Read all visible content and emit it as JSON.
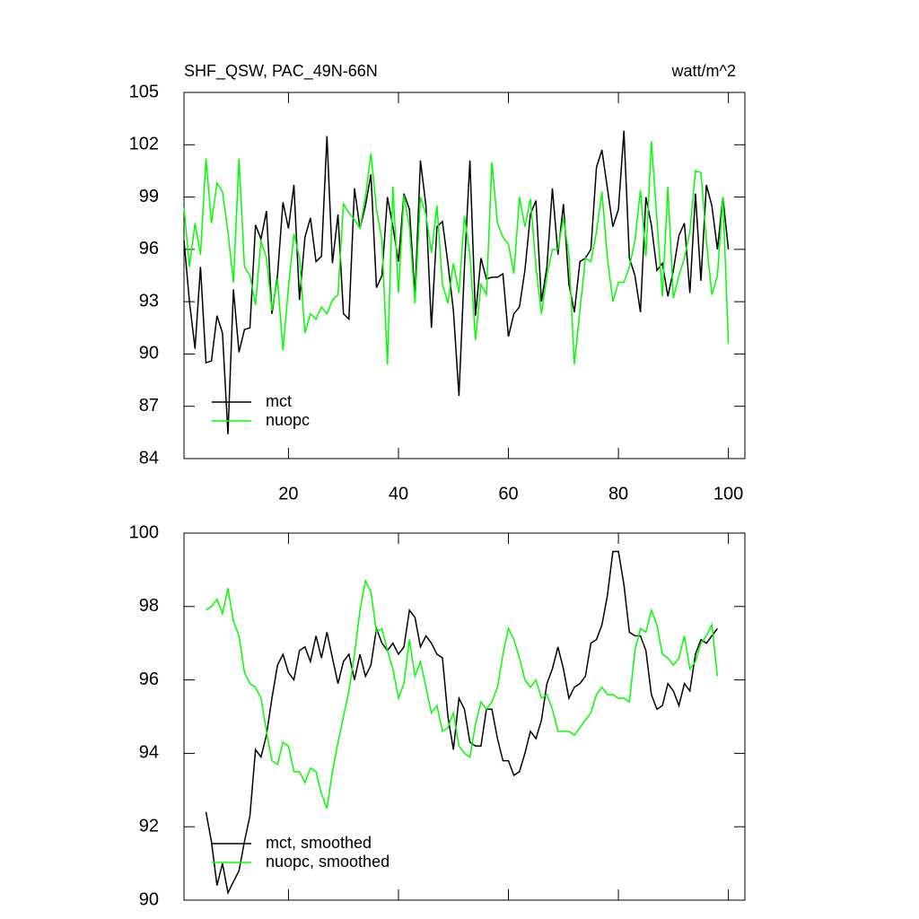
{
  "chart_data": [
    {
      "type": "line",
      "title": "SHF_QSW, PAC_49N-66N",
      "units": "watt/m^2",
      "x": [
        1,
        2,
        3,
        4,
        5,
        6,
        7,
        8,
        9,
        10,
        11,
        12,
        13,
        14,
        15,
        16,
        17,
        18,
        19,
        20,
        21,
        22,
        23,
        24,
        25,
        26,
        27,
        28,
        29,
        30,
        31,
        32,
        33,
        34,
        35,
        36,
        37,
        38,
        39,
        40,
        41,
        42,
        43,
        44,
        45,
        46,
        47,
        48,
        49,
        50,
        51,
        52,
        53,
        54,
        55,
        56,
        57,
        58,
        59,
        60,
        61,
        62,
        63,
        64,
        65,
        66,
        67,
        68,
        69,
        70,
        71,
        72,
        73,
        74,
        75,
        76,
        77,
        78,
        79,
        80,
        81,
        82,
        83,
        84,
        85,
        86,
        87,
        88,
        89,
        90,
        91,
        92,
        93,
        94,
        95,
        96,
        97,
        98,
        99,
        100
      ],
      "series": [
        {
          "name": "mct",
          "color": "#000000",
          "values": [
            96.5,
            93,
            90.3,
            95,
            89.5,
            89.6,
            92.2,
            91.2,
            85.4,
            93.7,
            90.1,
            91.4,
            91.5,
            97.4,
            96.6,
            98.2,
            92.3,
            94.5,
            98.7,
            97.2,
            99.7,
            93.1,
            96.7,
            97.8,
            95.3,
            95.6,
            102.5,
            95.2,
            98,
            92.3,
            92,
            99.5,
            97.2,
            98.5,
            100.3,
            93.8,
            94.5,
            99,
            97.3,
            95.3,
            99.2,
            98.3,
            93.3,
            101.1,
            98.5,
            91.5,
            97.3,
            97.6,
            95.2,
            92.5,
            87.6,
            95,
            101.1,
            92.2,
            95.5,
            94.3,
            94.4,
            94.4,
            94.6,
            91,
            92.3,
            92.7,
            94.8,
            98,
            98.8,
            93,
            95,
            99.5,
            95.7,
            98.6,
            94,
            92.4,
            95.3,
            95.5,
            96,
            100.7,
            101.7,
            99.5,
            97.3,
            98.3,
            102.8,
            95.5,
            94.5,
            92.4,
            99,
            97.4,
            94.8,
            95.2,
            93.3,
            94.8,
            96.8,
            97.5,
            93.5,
            99.2,
            94.2,
            99.7,
            98.5,
            96,
            99,
            96
          ]
        },
        {
          "name": "nuopc",
          "color": "#00ff00",
          "values": [
            98.4,
            95,
            97.5,
            95.7,
            101.2,
            97.5,
            99.8,
            99.3,
            97,
            94.1,
            101.2,
            95,
            94.5,
            92.8,
            96.5,
            95.5,
            92.5,
            94.3,
            90.2,
            93.8,
            96.9,
            95.5,
            91.2,
            92.3,
            92,
            92.7,
            92.3,
            93.1,
            93.4,
            98.6,
            98.1,
            97.7,
            97.2,
            99,
            101.5,
            98.3,
            96.5,
            89.4,
            99.6,
            93.5,
            99.1,
            97.3,
            92.9,
            99,
            98,
            95.8,
            98.5,
            94,
            92.9,
            95.2,
            93.5,
            97.9,
            95.7,
            90.8,
            94,
            93.4,
            101,
            97.5,
            96.7,
            96.3,
            94.6,
            99,
            97.3,
            98.9,
            95,
            92.3,
            94.5,
            96,
            96,
            97.8,
            95.7,
            89.4,
            92.5,
            95.5,
            95.3,
            97,
            99.3,
            95.5,
            93,
            94.1,
            94.1,
            95,
            96.5,
            99.4,
            95.6,
            102.2,
            97.7,
            93.3,
            99.6,
            93.2,
            94.5,
            95.5,
            97,
            100.5,
            100.4,
            96.5,
            93.4,
            94.5,
            99,
            90.6
          ]
        }
      ],
      "xlim": [
        1,
        103
      ],
      "xticks": [
        20,
        40,
        60,
        80,
        100
      ],
      "x_tick_labels": true,
      "ylim": [
        84,
        105
      ],
      "yticks": [
        84,
        87,
        90,
        93,
        96,
        99,
        102,
        105
      ],
      "legend": "lower left"
    },
    {
      "type": "line",
      "x": [
        5,
        6,
        7,
        8,
        9,
        10,
        11,
        12,
        13,
        14,
        15,
        16,
        17,
        18,
        19,
        20,
        21,
        22,
        23,
        24,
        25,
        26,
        27,
        28,
        29,
        30,
        31,
        32,
        33,
        34,
        35,
        36,
        37,
        38,
        39,
        40,
        41,
        42,
        43,
        44,
        45,
        46,
        47,
        48,
        49,
        50,
        51,
        52,
        53,
        54,
        55,
        56,
        57,
        58,
        59,
        60,
        61,
        62,
        63,
        64,
        65,
        66,
        67,
        68,
        69,
        70,
        71,
        72,
        73,
        74,
        75,
        76,
        77,
        78,
        79,
        80,
        81,
        82,
        83,
        84,
        85,
        86,
        87,
        88,
        89,
        90,
        91,
        92,
        93,
        94,
        95,
        96,
        97,
        98
      ],
      "series": [
        {
          "name": "mct, smoothed",
          "color": "#000000",
          "values": [
            92.4,
            91.6,
            90.4,
            91,
            90.2,
            90.5,
            90.8,
            91.6,
            92.3,
            94.1,
            93.9,
            94.5,
            95.5,
            96.4,
            96.7,
            96.2,
            96,
            96.8,
            96.9,
            96.5,
            97.2,
            96.6,
            97.3,
            96.6,
            95.9,
            96.5,
            96.7,
            96,
            96.7,
            96.1,
            96.4,
            97.4,
            97,
            96.8,
            97,
            96.7,
            96.9,
            97.9,
            97.7,
            96.9,
            97.2,
            97,
            96.7,
            96.6,
            95,
            94.1,
            95.5,
            95.2,
            94.3,
            94.2,
            94.2,
            95.2,
            95.2,
            94.4,
            93.8,
            93.8,
            93.4,
            93.5,
            94,
            94.6,
            94.4,
            94.9,
            95.9,
            96.3,
            96.9,
            96.3,
            95.5,
            95.8,
            95.9,
            96.1,
            97,
            97.1,
            97.5,
            98.3,
            99.5,
            99.5,
            98.6,
            97.3,
            97.2,
            97.2,
            96.8,
            95.6,
            95.2,
            95.3,
            95.9,
            95.7,
            95.3,
            95.9,
            95.7,
            96.7,
            97.1,
            97,
            97.2,
            97.4
          ]
        },
        {
          "name": "nuopc, smoothed",
          "color": "#00ff00",
          "values": [
            97.9,
            98,
            98.2,
            97.8,
            98.5,
            97.6,
            97.2,
            96.2,
            95.9,
            95.8,
            95.5,
            94.6,
            93.8,
            93.7,
            94.3,
            94.2,
            93.5,
            93.5,
            93.2,
            93.6,
            93.5,
            92.9,
            92.5,
            93.5,
            94.3,
            95,
            95.7,
            96.7,
            97.9,
            98.7,
            98.4,
            97.3,
            97.4,
            96.8,
            96.3,
            95.5,
            95.9,
            97.1,
            96.1,
            96.5,
            95.8,
            95.1,
            95.3,
            94.6,
            94.7,
            95.1,
            94.2,
            94,
            93.9,
            94.8,
            95.4,
            95.2,
            95.4,
            95.8,
            96.7,
            97.4,
            97.1,
            96.6,
            96,
            95.8,
            96,
            95.5,
            95.6,
            95.2,
            94.6,
            94.6,
            94.6,
            94.5,
            94.7,
            94.9,
            95.1,
            95.6,
            95.8,
            95.6,
            95.6,
            95.5,
            95.5,
            95.4,
            96.8,
            97.4,
            97.3,
            97.9,
            97.5,
            96.7,
            96.6,
            96.4,
            96.6,
            97.2,
            96.3,
            96.5,
            97,
            97.2,
            97.5,
            96.1
          ]
        }
      ],
      "xlim": [
        1,
        103
      ],
      "xticks": [
        20,
        40,
        60,
        80,
        100
      ],
      "x_tick_labels": false,
      "ylim": [
        90,
        100
      ],
      "yticks": [
        90,
        92,
        94,
        96,
        98,
        100
      ],
      "legend": "lower left"
    }
  ]
}
